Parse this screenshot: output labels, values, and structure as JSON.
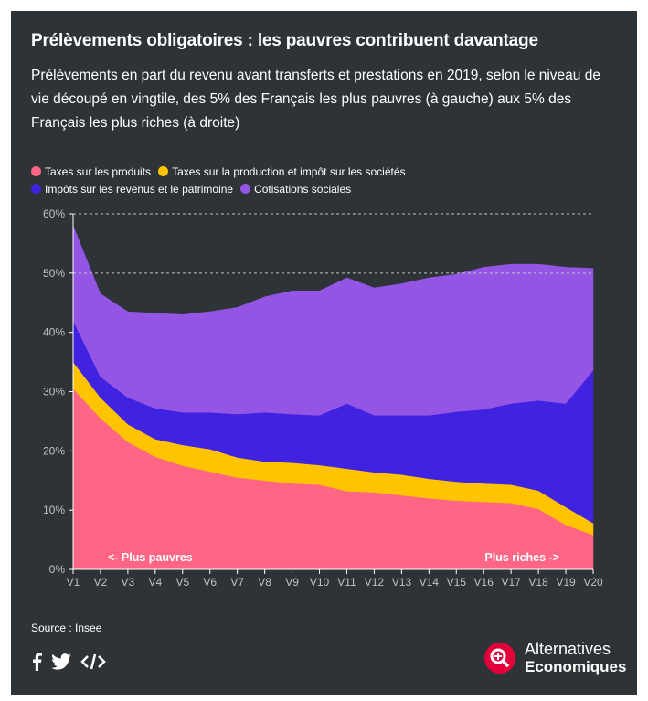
{
  "header": {
    "title": "Prélèvements obligatoires : les pauvres contribuent davantage",
    "subtitle": "Prélèvements en part du revenu avant transferts et prestations en 2019, selon le niveau de vie découpé en vingtile, des 5% des Français les plus pauvres (à gauche) aux 5% des Français les plus riches (à droite)"
  },
  "chart_data": {
    "type": "area",
    "stacked": true,
    "categories": [
      "V1",
      "V2",
      "V3",
      "V4",
      "V5",
      "V6",
      "V7",
      "V8",
      "V9",
      "V10",
      "V11",
      "V12",
      "V13",
      "V14",
      "V15",
      "V16",
      "V17",
      "V18",
      "V19",
      "V20"
    ],
    "y_ticks": [
      "0%",
      "10%",
      "20%",
      "30%",
      "40%",
      "50%",
      "60%"
    ],
    "ylim": [
      0,
      60
    ],
    "y_unit": "%",
    "grid": "dashed lines at 50% and 60%",
    "legend_placement": "top-left",
    "series": [
      {
        "name": "Taxes sur les produits",
        "color": "#ff6584",
        "values": [
          30.5,
          25.5,
          21.5,
          19.0,
          17.5,
          16.5,
          15.5,
          15.0,
          14.5,
          14.3,
          13.2,
          13.0,
          12.5,
          12.0,
          11.6,
          11.4,
          11.2,
          10.2,
          7.5,
          5.8
        ]
      },
      {
        "name": "Taxes sur la production et impôt sur les sociétés",
        "color": "#ffc300",
        "values": [
          4.5,
          3.5,
          3.0,
          3.0,
          3.5,
          3.8,
          3.4,
          3.2,
          3.5,
          3.3,
          3.8,
          3.4,
          3.5,
          3.3,
          3.2,
          3.1,
          3.1,
          3.1,
          3.0,
          2.0
        ]
      },
      {
        "name": "Impôts sur les revenus et le patrimoine",
        "color": "#3f23e0",
        "values": [
          7.0,
          3.5,
          4.5,
          5.2,
          5.5,
          6.2,
          7.3,
          8.3,
          8.2,
          8.4,
          11.0,
          9.6,
          10.0,
          10.7,
          11.8,
          12.5,
          13.7,
          15.2,
          17.5,
          25.8
        ]
      },
      {
        "name": "Cotisations sociales",
        "color": "#9455e4",
        "values": [
          16.0,
          14.0,
          14.5,
          16.0,
          16.5,
          17.0,
          18.0,
          19.5,
          20.8,
          21.0,
          21.2,
          21.5,
          22.2,
          23.2,
          23.2,
          24.0,
          23.5,
          23.0,
          23.0,
          17.2
        ]
      }
    ],
    "annotations": [
      "<- Plus pauvres",
      "Plus riches ->"
    ]
  },
  "footer": {
    "source": "Source : Insee",
    "brand_line1": "Alternatives",
    "brand_line2": "Economiques",
    "icons": [
      "facebook-icon",
      "twitter-icon",
      "embed-code-icon"
    ]
  }
}
